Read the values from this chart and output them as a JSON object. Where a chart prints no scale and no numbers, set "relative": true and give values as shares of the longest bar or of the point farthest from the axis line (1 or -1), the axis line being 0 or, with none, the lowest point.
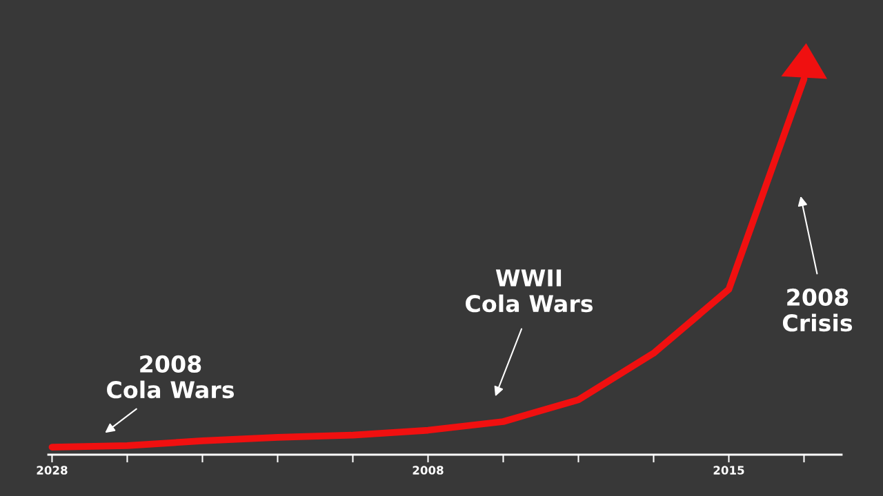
{
  "chart_data": {
    "type": "line",
    "relative": true,
    "tick_labels": "x",
    "categories": [
      "2028",
      null,
      null,
      null,
      null,
      "2008",
      null,
      null,
      null,
      "2015",
      null
    ],
    "series": [
      {
        "color": "#f01010",
        "values": [
          0.02,
          0.024,
          0.037,
          0.046,
          0.052,
          0.065,
          0.088,
          0.146,
          0.27,
          0.44,
          1.0
        ]
      }
    ],
    "annotations": [
      "2008\nCola Wars",
      "WWII\nCola Wars",
      "2008\nCrisis"
    ]
  }
}
